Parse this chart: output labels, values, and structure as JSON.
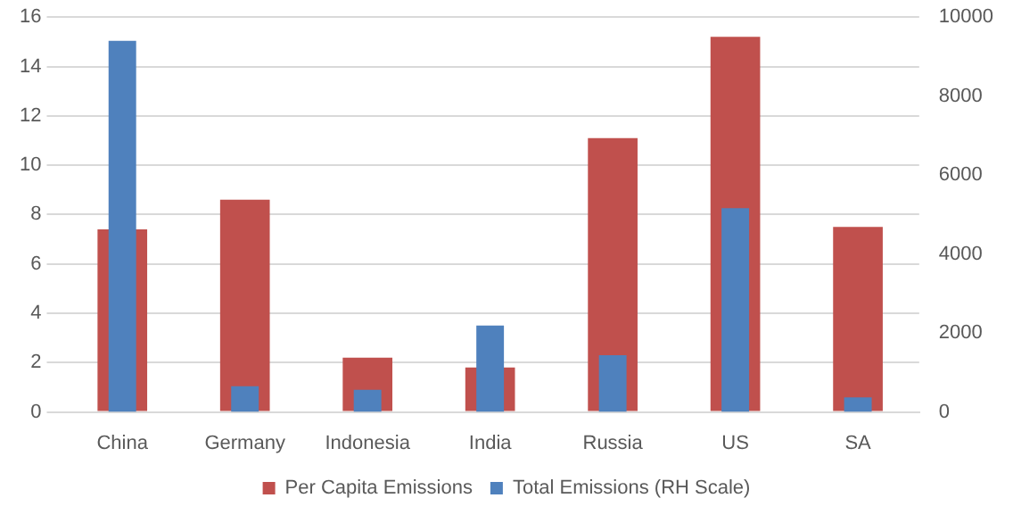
{
  "chart_data": {
    "type": "bar",
    "categories": [
      "China",
      "Germany",
      "Indonesia",
      "India",
      "Russia",
      "US",
      "SA"
    ],
    "series": [
      {
        "name": "Per Capita Emissions",
        "color": "#c0504d",
        "values": [
          7.4,
          8.6,
          2.2,
          1.8,
          11.1,
          15.2,
          7.5
        ]
      },
      {
        "name": "Total Emissions (RH Scale)",
        "color": "#4f81bd",
        "axis": "y2",
        "values": [
          9400,
          650,
          560,
          2190,
          1440,
          5160,
          370
        ]
      }
    ],
    "ylim": [
      0,
      16
    ],
    "yticks": [
      0,
      2,
      4,
      6,
      8,
      10,
      12,
      14,
      16
    ],
    "y2lim": [
      0,
      10000
    ],
    "y2ticks": [
      0,
      2000,
      4000,
      6000,
      8000,
      10000
    ],
    "grid": "y",
    "legend": "bottom"
  }
}
